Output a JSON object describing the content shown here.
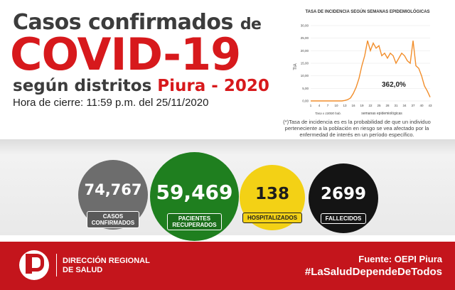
{
  "title": {
    "line1": "Casos confirmados",
    "line1_small": "de",
    "covid": "COVID-19",
    "line3_a": "según distritos",
    "line3_b": "Piura - 2020",
    "closing": "Hora de cierre: 11:59 p.m. del  25/11/2020"
  },
  "chart_data": {
    "type": "line",
    "title": "TASA DE INCIDENCIA SEGÚN SEMANAS EPIDEMIOLÓGICAS",
    "xlabel": "semanas epidemiológicas",
    "ylabel": "TIA",
    "note": "Tasa x 10000 hab.",
    "annotation": "362,0%",
    "ylim": [
      0,
      30
    ],
    "yticks": [
      "0,00",
      "5,00",
      "10,00",
      "15,00",
      "20,00",
      "25,00",
      "30,00"
    ],
    "xticks": [
      "1",
      "4",
      "7",
      "10",
      "13",
      "16",
      "19",
      "22",
      "25",
      "28",
      "31",
      "34",
      "37",
      "40",
      "43"
    ],
    "x": [
      1,
      2,
      3,
      4,
      5,
      6,
      7,
      8,
      9,
      10,
      11,
      12,
      13,
      14,
      15,
      16,
      17,
      18,
      19,
      20,
      21,
      22,
      23,
      24,
      25,
      26,
      27,
      28,
      29,
      30,
      31,
      32,
      33,
      34,
      35,
      36,
      37,
      38,
      39,
      40,
      41,
      42,
      43
    ],
    "values": [
      0,
      0,
      0,
      0,
      0,
      0,
      0,
      0,
      0,
      0,
      0,
      0,
      0.2,
      0.5,
      1.2,
      3,
      5.5,
      9,
      14,
      18,
      24,
      20,
      23,
      21,
      22,
      18,
      19,
      17,
      19,
      18,
      15,
      17,
      19,
      18,
      16,
      15,
      24,
      14,
      13,
      10,
      6,
      4,
      1.5
    ],
    "color": "#f28e2b"
  },
  "footnote": "(*)Tasa de incidencia es es la probabilidad de que un individuo perteneciente a la población en riesgo se vea afectado por la enfermedad de interés en un período específico.",
  "stats": {
    "confirmados": {
      "value": "74,767",
      "label_1": "CASOS",
      "label_2": "CONFIRMADOS",
      "color": "#6d6d6d"
    },
    "recuperados": {
      "value": "59,469",
      "label_1": "PACIENTES",
      "label_2": "RECUPERADOS",
      "color": "#1f7f1f"
    },
    "hospitalizados": {
      "value": "138",
      "label_1": "HOSPITALIZADOS",
      "color": "#f3d115"
    },
    "fallecidos": {
      "value": "2699",
      "label_1": "FALLECIDOS",
      "color": "#141414"
    }
  },
  "footer": {
    "logo_text": "Gobierno Regional Piura",
    "dir_1": "DIRECCIÓN REGIONAL",
    "dir_2": "DE SALUD",
    "source": "Fuente: OEPI Piura",
    "hashtag": "#LaSaludDependeDeTodos",
    "color": "#c4151c"
  }
}
